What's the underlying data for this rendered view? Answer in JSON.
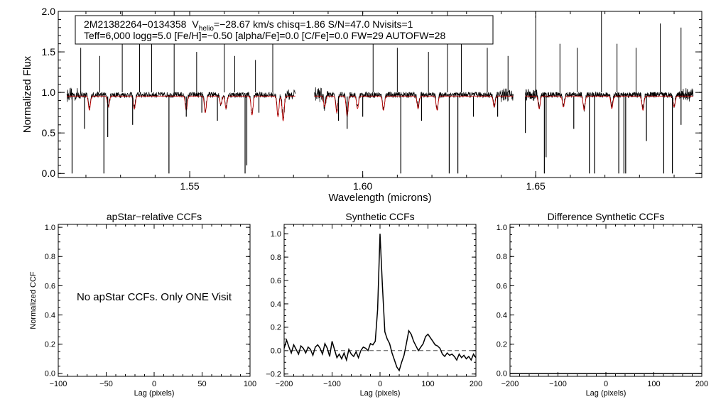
{
  "chart_data": [
    {
      "type": "line",
      "id": "spectrum",
      "info_line1_star": "2M21382264−0134358",
      "info_line1_v": "V",
      "info_line1_vsub": "helio",
      "info_line1_rest": "=−28.67 km/s  chisq=1.86  S/N=47.0  Nvisits=1",
      "info_line2": "Teff=6,000 logg=5.0 [Fe/H]=−0.50 [alpha/Fe]=0.0 [C/Fe]=0.0 FW=29 AUTOFW=28",
      "xlabel": "Wavelength (microns)",
      "ylabel": "Normalized Flux",
      "xlim": [
        1.512,
        1.698
      ],
      "ylim": [
        -0.05,
        2.0
      ],
      "xticks": [
        1.55,
        1.6,
        1.65
      ],
      "xtick_labels": [
        "1.55",
        "1.60",
        "1.65"
      ],
      "yticks": [
        0.0,
        0.5,
        1.0,
        1.5,
        2.0
      ],
      "ytick_labels": [
        "0.0",
        "0.5",
        "1.0",
        "1.5",
        "2.0"
      ],
      "chips": [
        [
          1.5145,
          1.5805
        ],
        [
          1.586,
          1.6435
        ],
        [
          1.647,
          1.6955
        ]
      ],
      "series": [
        {
          "color": "#000000",
          "style": "observed"
        },
        {
          "color": "#cc0000",
          "style": "model"
        }
      ],
      "absorption_lines": [
        {
          "x": 1.516,
          "y": 0.0
        },
        {
          "x": 1.5196,
          "y": 0.55
        },
        {
          "x": 1.5252,
          "y": 0.0
        },
        {
          "x": 1.5263,
          "y": 0.45
        },
        {
          "x": 1.5335,
          "y": 0.6
        },
        {
          "x": 1.544,
          "y": 0.0
        },
        {
          "x": 1.549,
          "y": 0.7
        },
        {
          "x": 1.5535,
          "y": 0.75
        },
        {
          "x": 1.558,
          "y": 0.65
        },
        {
          "x": 1.566,
          "y": 0.0
        },
        {
          "x": 1.5665,
          "y": 0.1
        },
        {
          "x": 1.57,
          "y": 0.75
        },
        {
          "x": 1.593,
          "y": 0.65
        },
        {
          "x": 1.5955,
          "y": 0.55
        },
        {
          "x": 1.6,
          "y": 0.7
        },
        {
          "x": 1.611,
          "y": 0.0
        },
        {
          "x": 1.617,
          "y": 0.65
        },
        {
          "x": 1.625,
          "y": 0.0
        },
        {
          "x": 1.6275,
          "y": 0.0
        },
        {
          "x": 1.632,
          "y": 0.7
        },
        {
          "x": 1.639,
          "y": 0.7
        },
        {
          "x": 1.647,
          "y": 0.5
        },
        {
          "x": 1.6525,
          "y": 0.0
        },
        {
          "x": 1.653,
          "y": 0.2
        },
        {
          "x": 1.661,
          "y": 0.55
        },
        {
          "x": 1.6655,
          "y": 0.0
        },
        {
          "x": 1.667,
          "y": 0.0
        },
        {
          "x": 1.674,
          "y": 0.0
        },
        {
          "x": 1.6755,
          "y": 0.0
        },
        {
          "x": 1.676,
          "y": 0.0
        },
        {
          "x": 1.682,
          "y": 0.4
        },
        {
          "x": 1.687,
          "y": 0.0
        },
        {
          "x": 1.6895,
          "y": 0.0
        },
        {
          "x": 1.692,
          "y": 0.6
        }
      ],
      "model_lines": [
        {
          "x": 1.521,
          "y": 0.78
        },
        {
          "x": 1.5265,
          "y": 0.82
        },
        {
          "x": 1.534,
          "y": 0.8
        },
        {
          "x": 1.549,
          "y": 0.78
        },
        {
          "x": 1.5545,
          "y": 0.75
        },
        {
          "x": 1.559,
          "y": 0.85
        },
        {
          "x": 1.5605,
          "y": 0.8
        },
        {
          "x": 1.568,
          "y": 0.72
        },
        {
          "x": 1.5755,
          "y": 0.7
        },
        {
          "x": 1.577,
          "y": 0.65
        },
        {
          "x": 1.589,
          "y": 0.82
        },
        {
          "x": 1.5925,
          "y": 0.75
        },
        {
          "x": 1.5955,
          "y": 0.7
        },
        {
          "x": 1.5985,
          "y": 0.8
        },
        {
          "x": 1.606,
          "y": 0.78
        },
        {
          "x": 1.616,
          "y": 0.8
        },
        {
          "x": 1.6215,
          "y": 0.78
        },
        {
          "x": 1.638,
          "y": 0.82
        },
        {
          "x": 1.651,
          "y": 0.8
        },
        {
          "x": 1.658,
          "y": 0.82
        },
        {
          "x": 1.664,
          "y": 0.78
        },
        {
          "x": 1.672,
          "y": 0.8
        },
        {
          "x": 1.681,
          "y": 0.78
        },
        {
          "x": 1.69,
          "y": 0.82
        }
      ],
      "emission_spikes": [
        {
          "x": 1.5185,
          "y": 1.55
        },
        {
          "x": 1.524,
          "y": 1.45
        },
        {
          "x": 1.5305,
          "y": 2.0
        },
        {
          "x": 1.5355,
          "y": 1.85
        },
        {
          "x": 1.539,
          "y": 1.6
        },
        {
          "x": 1.5455,
          "y": 2.0
        },
        {
          "x": 1.552,
          "y": 1.5
        },
        {
          "x": 1.56,
          "y": 1.7
        },
        {
          "x": 1.563,
          "y": 1.45
        },
        {
          "x": 1.569,
          "y": 1.4
        },
        {
          "x": 1.574,
          "y": 1.6
        },
        {
          "x": 1.603,
          "y": 1.95
        },
        {
          "x": 1.61,
          "y": 1.55
        },
        {
          "x": 1.619,
          "y": 1.5
        },
        {
          "x": 1.6245,
          "y": 2.0
        },
        {
          "x": 1.6285,
          "y": 1.7
        },
        {
          "x": 1.636,
          "y": 1.55
        },
        {
          "x": 1.642,
          "y": 1.45
        },
        {
          "x": 1.65,
          "y": 1.95
        },
        {
          "x": 1.657,
          "y": 1.6
        },
        {
          "x": 1.662,
          "y": 1.55
        },
        {
          "x": 1.669,
          "y": 2.0
        },
        {
          "x": 1.6735,
          "y": 1.6
        },
        {
          "x": 1.679,
          "y": 1.55
        },
        {
          "x": 1.686,
          "y": 1.85
        },
        {
          "x": 1.692,
          "y": 1.8
        }
      ]
    },
    {
      "type": "line",
      "id": "apstar-ccf",
      "title": "apStar−relative CCFs",
      "xlabel": "Lag (pixels)",
      "ylabel": "Normalized CCF",
      "xlim": [
        -100,
        100
      ],
      "ylim": [
        -0.02,
        1.02
      ],
      "xticks": [
        -100,
        -50,
        0,
        50,
        100
      ],
      "xtick_labels": [
        "−100",
        "−50",
        "0",
        "50",
        "100"
      ],
      "yticks": [
        0.0,
        0.2,
        0.4,
        0.6,
        0.8,
        1.0
      ],
      "ytick_labels": [
        "0.0",
        "0.2",
        "0.4",
        "0.6",
        "0.8",
        "1.0"
      ],
      "annotation": "No apStar CCFs.  Only ONE Visit",
      "series": []
    },
    {
      "type": "line",
      "id": "synthetic-ccf",
      "title": "Synthetic CCFs",
      "xlabel": "Lag (pixels)",
      "xlim": [
        -200,
        200
      ],
      "ylim": [
        -0.22,
        1.08
      ],
      "xticks": [
        -200,
        -100,
        0,
        100,
        200
      ],
      "xtick_labels": [
        "−200",
        "−100",
        "0",
        "100",
        "200"
      ],
      "yticks": [
        -0.2,
        0.0,
        0.2,
        0.4,
        0.6,
        0.8,
        1.0
      ],
      "ytick_labels": [
        "−0.2",
        "0.0",
        "0.2",
        "0.4",
        "0.6",
        "0.8",
        "1.0"
      ],
      "zero_line": 0.0,
      "series": [
        {
          "color": "#000000",
          "x": [
            -200,
            -195,
            -190,
            -185,
            -180,
            -175,
            -170,
            -165,
            -160,
            -155,
            -150,
            -145,
            -140,
            -135,
            -130,
            -125,
            -120,
            -115,
            -110,
            -105,
            -100,
            -95,
            -90,
            -85,
            -80,
            -75,
            -70,
            -65,
            -60,
            -55,
            -50,
            -45,
            -40,
            -35,
            -30,
            -25,
            -20,
            -15,
            -10,
            -5,
            0,
            5,
            10,
            15,
            20,
            25,
            30,
            35,
            40,
            45,
            50,
            55,
            60,
            65,
            70,
            75,
            80,
            85,
            90,
            95,
            100,
            105,
            110,
            115,
            120,
            125,
            130,
            135,
            140,
            145,
            150,
            155,
            160,
            165,
            170,
            175,
            180,
            185,
            190,
            195,
            200
          ],
          "y": [
            0.02,
            0.09,
            0.03,
            -0.02,
            0.05,
            0.01,
            -0.03,
            0.04,
            0.02,
            -0.02,
            0.03,
            0.01,
            -0.04,
            0.03,
            0.05,
            0.02,
            -0.03,
            0.06,
            0.02,
            -0.05,
            0.08,
            0.01,
            -0.06,
            -0.03,
            -0.07,
            -0.02,
            -0.08,
            0.01,
            -0.03,
            -0.05,
            -0.01,
            -0.06,
            0.0,
            0.03,
            0.02,
            0.0,
            0.06,
            0.05,
            0.08,
            0.35,
            1.0,
            0.55,
            0.16,
            0.1,
            0.06,
            -0.02,
            -0.08,
            -0.14,
            -0.17,
            -0.1,
            -0.04,
            0.06,
            0.17,
            0.14,
            0.08,
            0.04,
            0.0,
            0.03,
            0.06,
            0.12,
            0.14,
            0.11,
            0.08,
            0.05,
            0.04,
            0.02,
            -0.03,
            -0.05,
            -0.02,
            -0.04,
            -0.03,
            -0.05,
            -0.08,
            -0.03,
            -0.06,
            -0.04,
            -0.07,
            -0.05,
            -0.08,
            -0.03,
            -0.06
          ]
        }
      ]
    },
    {
      "type": "line",
      "id": "difference-ccf",
      "title": "Difference Synthetic CCFs",
      "xlabel": "Lag (pixels)",
      "xlim": [
        -200,
        200
      ],
      "ylim": [
        -0.02,
        1.02
      ],
      "xticks": [
        -200,
        -100,
        0,
        100,
        200
      ],
      "xtick_labels": [
        "−200",
        "−100",
        "0",
        "100",
        "200"
      ],
      "yticks": [
        0.0,
        0.2,
        0.4,
        0.6,
        0.8,
        1.0
      ],
      "ytick_labels": [
        "0.0",
        "0.2",
        "0.4",
        "0.6",
        "0.8",
        "1.0"
      ],
      "series": [
        {
          "color": "#000000",
          "x": [
            -200,
            200
          ],
          "y": [
            0.0,
            0.0
          ]
        }
      ]
    }
  ]
}
